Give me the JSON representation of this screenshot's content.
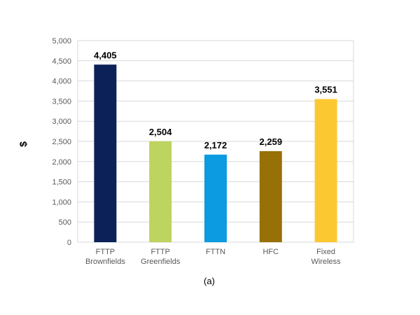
{
  "chart_data": {
    "type": "bar",
    "categories": [
      [
        "FTTP",
        "Brownfields"
      ],
      [
        "FTTP",
        "Greenfields"
      ],
      [
        "FTTN"
      ],
      [
        "HFC"
      ],
      [
        "Fixed",
        "Wireless"
      ]
    ],
    "values": [
      4405,
      2504,
      2172,
      2259,
      3551
    ],
    "data_labels": [
      "4,405",
      "2,504",
      "2,172",
      "2,259",
      "3,551"
    ],
    "colors": [
      "#0c2157",
      "#bdd45e",
      "#0c9be0",
      "#987008",
      "#fcc832"
    ],
    "ylabel": "$",
    "ylim": [
      0,
      5000
    ],
    "yticks": [
      0,
      500,
      1000,
      1500,
      2000,
      2500,
      3000,
      3500,
      4000,
      4500,
      5000
    ],
    "ytick_labels": [
      "0",
      "500",
      "1,000",
      "1,500",
      "2,000",
      "2,500",
      "3,000",
      "3,500",
      "4,000",
      "4,500",
      "5,000"
    ],
    "grid": true,
    "legend": "none",
    "caption": "(a)"
  }
}
